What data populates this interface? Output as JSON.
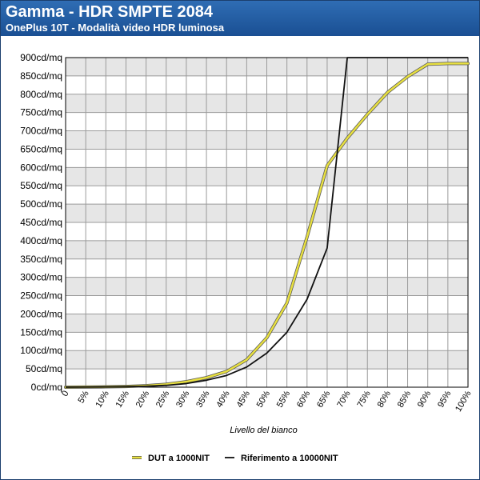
{
  "header": {
    "title": "Gamma - HDR SMPTE 2084",
    "subtitle": "OnePlus 10T - Modalità video HDR luminosa"
  },
  "chart_data": {
    "type": "line",
    "x": [
      0,
      5,
      10,
      15,
      20,
      25,
      30,
      35,
      40,
      45,
      50,
      55,
      60,
      65,
      70,
      75,
      80,
      85,
      90,
      95,
      100
    ],
    "x_tick_labels": [
      "0",
      "5%",
      "10%",
      "15%",
      "20%",
      "25%",
      "30%",
      "35%",
      "40%",
      "45%",
      "50%",
      "55%",
      "60%",
      "65%",
      "70%",
      "75%",
      "80%",
      "85%",
      "90%",
      "95%",
      "100%"
    ],
    "y_tick_labels": [
      "0cd/mq",
      "50cd/mq",
      "100cd/mq",
      "150cd/mq",
      "200cd/mq",
      "250cd/mq",
      "300cd/mq",
      "350cd/mq",
      "400cd/mq",
      "450cd/mq",
      "500cd/mq",
      "550cd/mq",
      "600cd/mq",
      "650cd/mq",
      "700cd/mq",
      "750cd/mq",
      "800cd/mq",
      "850cd/mq",
      "900cd/mq"
    ],
    "xlabel": "Livello del bianco",
    "ylabel": "",
    "xlim": [
      0,
      100
    ],
    "ylim": [
      0,
      900
    ],
    "grid": true,
    "legend_position": "bottom",
    "series": [
      {
        "name": "DUT a 1000NIT",
        "color": "#e8e040",
        "values": [
          0,
          0.5,
          1,
          2,
          4,
          8,
          15,
          26,
          43,
          75,
          135,
          230,
          410,
          605,
          680,
          745,
          805,
          848,
          882,
          884,
          884
        ]
      },
      {
        "name": "Riferimento a 10000NIT",
        "color": "#111111",
        "values": [
          0,
          0.3,
          0.8,
          1.5,
          2.7,
          5,
          10,
          19,
          32,
          55,
          93,
          150,
          240,
          380,
          900,
          900,
          900,
          900,
          900,
          900,
          900
        ]
      }
    ]
  }
}
